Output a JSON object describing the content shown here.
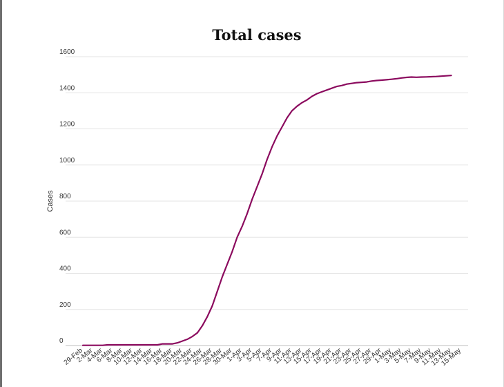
{
  "chart_data": {
    "type": "line",
    "title": "Total cases",
    "xlabel": "",
    "ylabel": "Cases",
    "ylim": [
      0,
      1600
    ],
    "yticks": [
      0,
      200,
      400,
      600,
      800,
      1000,
      1200,
      1400,
      1600
    ],
    "grid": true,
    "legend": "none",
    "x_tick_labels": [
      "29-Feb",
      "2-Mar",
      "4-Mar",
      "6-Mar",
      "8-Mar",
      "10-Mar",
      "12-Mar",
      "14-Mar",
      "16-Mar",
      "18-Mar",
      "20-Mar",
      "22-Mar",
      "24-Mar",
      "26-Mar",
      "28-Mar",
      "30-Mar",
      "1-Apr",
      "3-Apr",
      "5-Apr",
      "7-Apr",
      "9-Apr",
      "11-Apr",
      "13-Apr",
      "15-Apr",
      "17-Apr",
      "19-Apr",
      "21-Apr",
      "23-Apr",
      "25-Apr",
      "27-Apr",
      "29-Apr",
      "1-May",
      "3-May",
      "5-May",
      "7-May",
      "9-May",
      "11-May",
      "13-May",
      "15-May"
    ],
    "series": [
      {
        "color": "#8b0a5e",
        "x": [
          "29-Feb",
          "1-Mar",
          "2-Mar",
          "3-Mar",
          "4-Mar",
          "5-Mar",
          "6-Mar",
          "7-Mar",
          "8-Mar",
          "9-Mar",
          "10-Mar",
          "11-Mar",
          "12-Mar",
          "13-Mar",
          "14-Mar",
          "15-Mar",
          "16-Mar",
          "17-Mar",
          "18-Mar",
          "19-Mar",
          "20-Mar",
          "21-Mar",
          "22-Mar",
          "23-Mar",
          "24-Mar",
          "25-Mar",
          "26-Mar",
          "27-Mar",
          "28-Mar",
          "29-Mar",
          "30-Mar",
          "31-Mar",
          "1-Apr",
          "2-Apr",
          "3-Apr",
          "4-Apr",
          "5-Apr",
          "6-Apr",
          "7-Apr",
          "8-Apr",
          "9-Apr",
          "10-Apr",
          "11-Apr",
          "12-Apr",
          "13-Apr",
          "14-Apr",
          "15-Apr",
          "16-Apr",
          "17-Apr",
          "18-Apr",
          "19-Apr",
          "20-Apr",
          "21-Apr",
          "22-Apr",
          "23-Apr",
          "24-Apr",
          "25-Apr",
          "26-Apr",
          "27-Apr",
          "28-Apr",
          "29-Apr",
          "30-Apr",
          "1-May",
          "2-May",
          "3-May",
          "4-May",
          "5-May",
          "6-May",
          "7-May",
          "8-May",
          "9-May",
          "10-May",
          "11-May",
          "12-May",
          "13-May"
        ],
        "values": [
          1,
          1,
          1,
          1,
          1,
          4,
          4,
          4,
          4,
          4,
          4,
          4,
          4,
          4,
          4,
          4,
          9,
          9,
          9,
          15,
          25,
          35,
          50,
          70,
          110,
          160,
          220,
          300,
          380,
          450,
          520,
          600,
          660,
          730,
          810,
          880,
          950,
          1030,
          1100,
          1160,
          1210,
          1260,
          1300,
          1325,
          1345,
          1360,
          1380,
          1395,
          1405,
          1415,
          1425,
          1435,
          1440,
          1448,
          1452,
          1456,
          1458,
          1460,
          1465,
          1468,
          1470,
          1472,
          1475,
          1478,
          1482,
          1485,
          1487,
          1486,
          1487,
          1488,
          1489,
          1490,
          1492,
          1494,
          1496
        ]
      }
    ]
  }
}
